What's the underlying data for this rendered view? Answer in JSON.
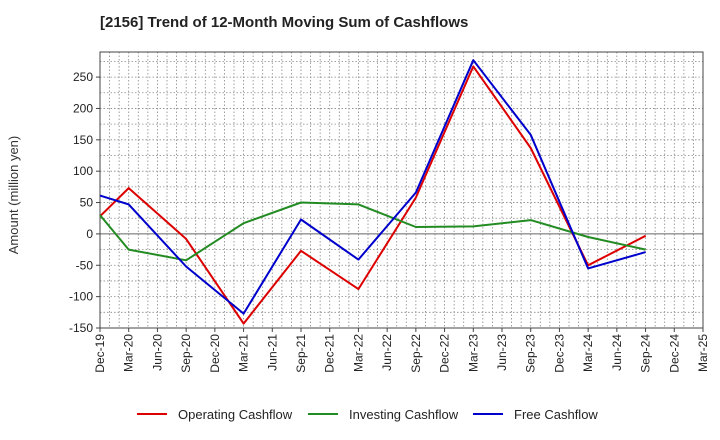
{
  "chart_data": {
    "type": "line",
    "title": "[2156]  Trend of 12-Month Moving Sum of Cashflows",
    "xlabel": "",
    "ylabel": "Amount (million yen)",
    "ylim": [
      -150,
      290
    ],
    "yticks": [
      250,
      200,
      150,
      100,
      50,
      0,
      -50,
      -100,
      -150
    ],
    "categories": [
      "Dec-19",
      "Mar-20",
      "Jun-20",
      "Sep-20",
      "Dec-20",
      "Mar-21",
      "Jun-21",
      "Sep-21",
      "Dec-21",
      "Mar-22",
      "Jun-22",
      "Sep-22",
      "Dec-22",
      "Mar-23",
      "Jun-23",
      "Sep-23",
      "Dec-23",
      "Mar-24",
      "Jun-24",
      "Sep-24",
      "Dec-24",
      "Mar-25"
    ],
    "grid": true,
    "legend_position": "bottom",
    "series": [
      {
        "name": "Operating Cashflow",
        "color": "#dd0000",
        "values": [
          28,
          73,
          null,
          -8,
          null,
          -143,
          null,
          -27,
          null,
          -88,
          null,
          58,
          null,
          267,
          null,
          137,
          null,
          -50,
          null,
          -3,
          null,
          null
        ]
      },
      {
        "name": "Investing Cashflow",
        "color": "#228b22",
        "values": [
          30,
          -25,
          null,
          -42,
          null,
          17,
          null,
          50,
          null,
          47,
          null,
          11,
          null,
          12,
          null,
          22,
          null,
          -5,
          null,
          -25,
          null,
          null
        ]
      },
      {
        "name": "Free Cashflow",
        "color": "#0000cc",
        "values": [
          61,
          47,
          null,
          -52,
          null,
          -127,
          null,
          23,
          null,
          -41,
          null,
          66,
          null,
          277,
          null,
          158,
          null,
          -55,
          null,
          -29,
          null,
          null
        ]
      }
    ]
  }
}
